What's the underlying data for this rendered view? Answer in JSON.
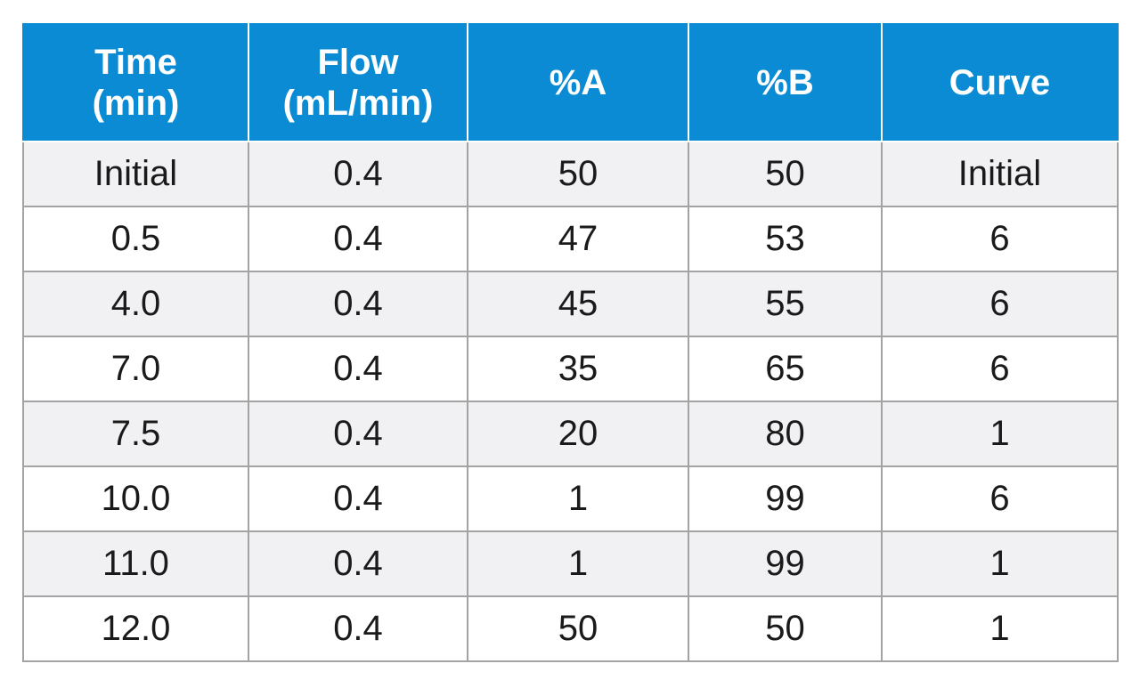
{
  "table": {
    "headers": [
      {
        "lines": [
          "Time",
          "(min)"
        ]
      },
      {
        "lines": [
          "Flow",
          "(mL/min)"
        ]
      },
      {
        "lines": [
          "%A"
        ]
      },
      {
        "lines": [
          "%B"
        ]
      },
      {
        "lines": [
          "Curve"
        ]
      }
    ],
    "rows": [
      [
        "Initial",
        "0.4",
        "50",
        "50",
        "Initial"
      ],
      [
        "0.5",
        "0.4",
        "47",
        "53",
        "6"
      ],
      [
        "4.0",
        "0.4",
        "45",
        "55",
        "6"
      ],
      [
        "7.0",
        "0.4",
        "35",
        "65",
        "6"
      ],
      [
        "7.5",
        "0.4",
        "20",
        "80",
        "1"
      ],
      [
        "10.0",
        "0.4",
        "1",
        "99",
        "6"
      ],
      [
        "11.0",
        "0.4",
        "1",
        "99",
        "1"
      ],
      [
        "12.0",
        "0.4",
        "50",
        "50",
        "1"
      ]
    ]
  },
  "colors": {
    "header_bg": "#0b8bd4",
    "header_text": "#ffffff",
    "row_shaded": "#f1f1f4",
    "row_plain": "#ffffff",
    "grid_line": "#a3a3a3"
  }
}
